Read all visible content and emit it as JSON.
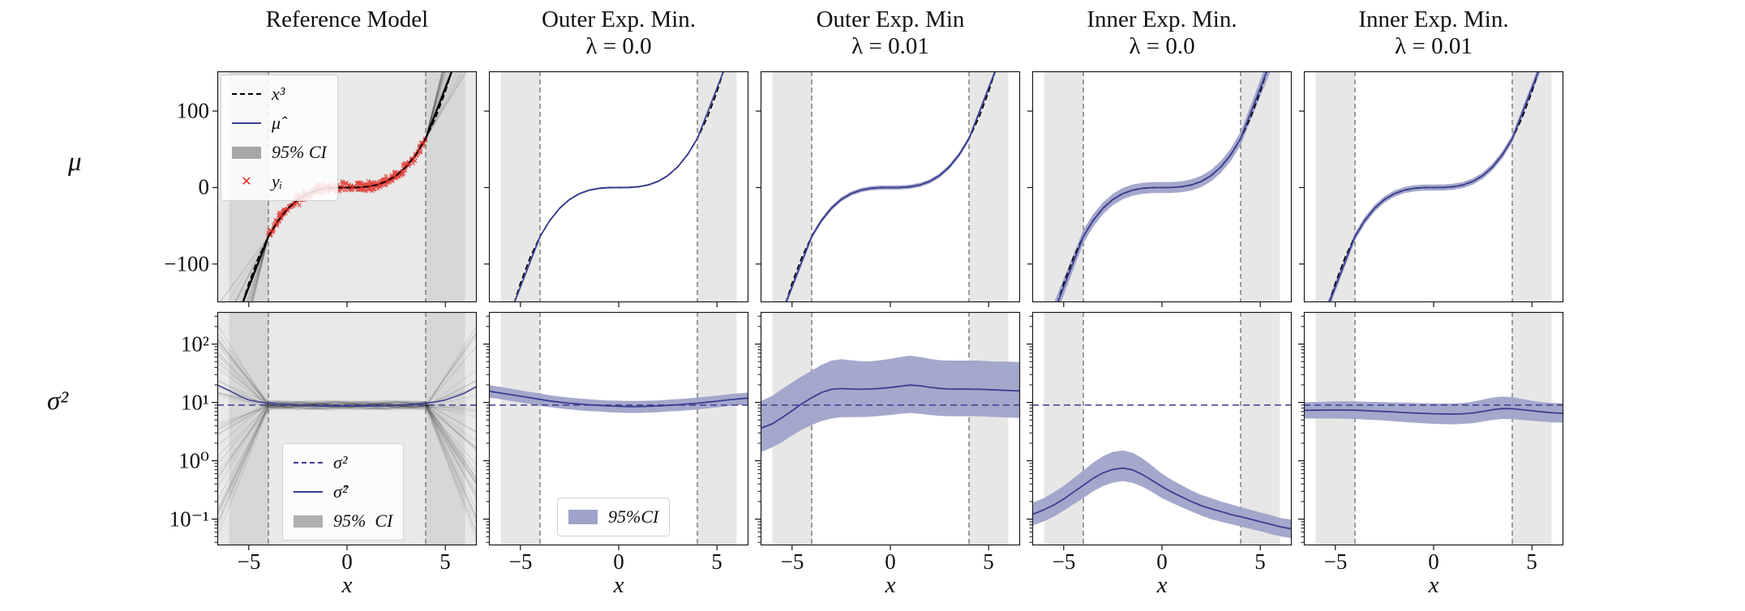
{
  "figure": {
    "row_labels": [
      "μ",
      "σ²"
    ],
    "x_label": "x",
    "x_ticks": [
      "−5",
      "0",
      "5"
    ],
    "mu_yticks": [
      "100",
      "0",
      "−100"
    ],
    "sigma_yticks": [
      "10²",
      "10¹",
      "10⁰",
      "10⁻¹"
    ],
    "columns": [
      {
        "title": "Reference Model",
        "subtitle": ""
      },
      {
        "title": "Outer Exp. Min.",
        "subtitle": "λ = 0.0"
      },
      {
        "title": "Outer Exp. Min",
        "subtitle": "λ = 0.01"
      },
      {
        "title": "Inner Exp. Min.",
        "subtitle": "λ = 0.0"
      },
      {
        "title": "Inner Exp. Min.",
        "subtitle": "λ = 0.01"
      }
    ],
    "legends": {
      "mu_ref": {
        "items": [
          {
            "label": "x³"
          },
          {
            "label": "μ̂"
          },
          {
            "label": "95% CI"
          },
          {
            "label": "yᵢ"
          }
        ]
      },
      "sigma_ref": {
        "items": [
          {
            "label": "σ²"
          },
          {
            "label": "σ̂²"
          },
          {
            "label": "95%  CI"
          }
        ]
      },
      "sigma_band": {
        "items": [
          {
            "label": "95%CI"
          }
        ]
      }
    }
  },
  "colors": {
    "blue": "#3b3e90",
    "band": "#9fa3c9",
    "red": "#de2d26",
    "ref_bg": "#e9e9e9",
    "ref_strip": "#d7d7d7",
    "strip": "#e7e7e7",
    "vline": "#6e6e6e",
    "spine": "#1a1a1a",
    "fan": "#111111"
  },
  "chart_data": {
    "type": "line",
    "x_axis": {
      "label": "x",
      "ticks": [
        -5,
        0,
        5
      ],
      "range": [
        -6.6,
        6.6
      ],
      "data_region": [
        -4,
        4
      ],
      "shaded_regions": [
        [
          -6,
          -4
        ],
        [
          4,
          6
        ]
      ]
    },
    "mu_axis": {
      "label": "μ",
      "ticks": [
        100,
        0,
        -100
      ],
      "range": [
        -150,
        152
      ],
      "scale": "linear"
    },
    "sigma_axis": {
      "label": "σ²",
      "tick_values": [
        100,
        10,
        1,
        0.1
      ],
      "range_log10": [
        -1.45,
        2.55
      ],
      "scale": "log"
    },
    "sigma_true": 9,
    "x": [
      -6.6,
      -6,
      -5.5,
      -5,
      -4.5,
      -4,
      -3.5,
      -3,
      -2.5,
      -2,
      -1.5,
      -1,
      -0.5,
      0,
      0.5,
      1,
      1.5,
      2,
      2.5,
      3,
      3.5,
      4,
      4.5,
      5,
      5.5,
      6,
      6.6
    ],
    "cubic": [
      -287.5,
      -216,
      -166.4,
      -125,
      -91.1,
      -64,
      -42.9,
      -27,
      -15.6,
      -8,
      -3.4,
      -1,
      -0.1,
      0,
      0.1,
      1,
      3.4,
      8,
      15.6,
      27,
      42.9,
      64,
      91.1,
      125,
      166.4,
      216,
      287.5
    ],
    "mu_fit": [
      -235.6,
      -196,
      -163,
      -130,
      -97,
      -64,
      -42.9,
      -27,
      -15.6,
      -8,
      -3.4,
      -1,
      -0.1,
      0,
      0.1,
      1,
      3.4,
      8,
      15.6,
      27,
      42.9,
      64,
      97,
      130,
      163,
      196,
      235.6
    ],
    "panels": {
      "mu": [
        {
          "column": "Reference Model",
          "kind": "ensemble",
          "scatter": {
            "label": "yᵢ",
            "n": 380,
            "x_range": [
              -4,
              4
            ],
            "noise_sd": 3,
            "marker": "x"
          },
          "ensemble_lines": 30,
          "shows": [
            "x³ dashed",
            "ensemble fan",
            "data scatter"
          ]
        },
        {
          "column": "Outer Exp. Min. λ=0.0",
          "kind": "fit",
          "band_halfwidth": [
            1.2,
            1.2,
            1.2,
            1.2,
            1.2,
            1.2,
            1.2,
            1.2,
            1.2,
            1.2,
            1.2,
            1.2,
            1.2,
            1.2,
            1.2,
            1.2,
            1.2,
            1.2,
            1.2,
            1.2,
            1.2,
            1.2,
            1.2,
            1.2,
            1.2,
            1.2,
            1.2
          ]
        },
        {
          "column": "Outer Exp. Min λ=0.01",
          "kind": "fit",
          "band_halfwidth": [
            5,
            4.6,
            4.2,
            3.9,
            3.5,
            3.2,
            3,
            2.9,
            2.8,
            2.8,
            2.8,
            2.8,
            2.8,
            2.8,
            2.8,
            2.8,
            2.8,
            2.8,
            2.8,
            2.9,
            3,
            3.2,
            3.5,
            3.9,
            4.2,
            4.6,
            5
          ]
        },
        {
          "column": "Inner Exp. Min. λ=0.0",
          "kind": "fit",
          "band_halfwidth": [
            16,
            14,
            12.5,
            11,
            9.8,
            8.8,
            8.2,
            7.8,
            7.5,
            7.4,
            7.3,
            7.2,
            7.2,
            7.2,
            7.2,
            7.2,
            7.3,
            7.4,
            7.5,
            7.8,
            8.2,
            8.8,
            9.8,
            11,
            12.5,
            14,
            16
          ]
        },
        {
          "column": "Inner Exp. Min. λ=0.01",
          "kind": "fit",
          "band_halfwidth": [
            9,
            8,
            7.2,
            6.4,
            5.7,
            5.1,
            4.7,
            4.4,
            4.2,
            4.1,
            4,
            4,
            4,
            4,
            4,
            4,
            4,
            4.1,
            4.2,
            4.4,
            4.7,
            5.1,
            5.7,
            6.4,
            7.2,
            8,
            9
          ]
        }
      ],
      "sigma": [
        {
          "column": "Reference Model",
          "kind": "ensemble",
          "ensemble_lines": 44,
          "center": [
            20,
            16,
            13,
            11,
            10.2,
            9.8,
            9.4,
            9.1,
            8.9,
            8.8,
            8.7,
            8.6,
            8.6,
            8.6,
            8.6,
            8.6,
            8.7,
            8.8,
            8.9,
            9.1,
            9.4,
            9.8,
            10.2,
            11,
            12.5,
            14.5,
            19
          ]
        },
        {
          "column": "Outer Exp. Min. λ=0.0",
          "kind": "band",
          "center": [
            15.5,
            14.5,
            13.6,
            12.8,
            12.0,
            11.3,
            10.6,
            10.1,
            9.7,
            9.4,
            9.1,
            8.9,
            8.7,
            8.6,
            8.5,
            8.5,
            8.6,
            8.7,
            8.9,
            9.1,
            9.4,
            9.7,
            10.1,
            10.5,
            11.0,
            11.4,
            11.9
          ],
          "upper": [
            19.8,
            18.4,
            17.2,
            16.1,
            15.1,
            14.2,
            13.3,
            12.6,
            12.1,
            11.7,
            11.3,
            11.0,
            10.8,
            10.7,
            10.6,
            10.6,
            10.7,
            10.8,
            11.1,
            11.4,
            11.7,
            12.1,
            12.6,
            13.1,
            13.7,
            14.2,
            14.8
          ],
          "lower": [
            12.1,
            11.3,
            10.6,
            10.0,
            9.4,
            8.8,
            8.3,
            7.9,
            7.6,
            7.3,
            7.1,
            7.0,
            6.8,
            6.7,
            6.6,
            6.6,
            6.7,
            6.8,
            7.0,
            7.1,
            7.3,
            7.6,
            7.9,
            8.2,
            8.6,
            8.9,
            9.3
          ]
        },
        {
          "column": "Outer Exp. Min λ=0.01",
          "kind": "band",
          "center": [
            3.6,
            4.3,
            5.5,
            7.2,
            9.5,
            12.0,
            14.8,
            16.8,
            17.3,
            17.0,
            16.8,
            17.0,
            17.4,
            18.0,
            18.9,
            19.8,
            19.3,
            18.2,
            17.4,
            17.0,
            16.9,
            16.9,
            16.8,
            16.6,
            16.3,
            16.0,
            15.7
          ],
          "upper": [
            10.5,
            13,
            17,
            22,
            28,
            35,
            44,
            52,
            55,
            53,
            51,
            51,
            53,
            56,
            60,
            63,
            60,
            56,
            53,
            52,
            52,
            52,
            52,
            51,
            50,
            50,
            49
          ],
          "lower": [
            1.4,
            1.7,
            2.1,
            2.7,
            3.4,
            4.1,
            4.8,
            5.3,
            5.6,
            5.6,
            5.6,
            5.7,
            5.9,
            6.1,
            6.4,
            6.6,
            6.4,
            6.1,
            5.9,
            5.8,
            5.8,
            5.8,
            5.8,
            5.7,
            5.6,
            5.5,
            5.4
          ]
        },
        {
          "column": "Inner Exp. Min. λ=0.0",
          "kind": "band",
          "center": [
            0.12,
            0.145,
            0.175,
            0.22,
            0.29,
            0.38,
            0.5,
            0.62,
            0.71,
            0.75,
            0.7,
            0.58,
            0.46,
            0.36,
            0.29,
            0.24,
            0.2,
            0.17,
            0.15,
            0.135,
            0.12,
            0.11,
            0.1,
            0.09,
            0.082,
            0.074,
            0.068
          ],
          "upper": [
            0.19,
            0.23,
            0.29,
            0.37,
            0.5,
            0.68,
            0.93,
            1.2,
            1.42,
            1.5,
            1.38,
            1.1,
            0.82,
            0.6,
            0.47,
            0.38,
            0.31,
            0.26,
            0.23,
            0.2,
            0.18,
            0.16,
            0.145,
            0.13,
            0.118,
            0.105,
            0.098
          ],
          "lower": [
            0.077,
            0.092,
            0.11,
            0.14,
            0.18,
            0.23,
            0.3,
            0.37,
            0.42,
            0.45,
            0.42,
            0.36,
            0.29,
            0.23,
            0.19,
            0.16,
            0.135,
            0.115,
            0.1,
            0.09,
            0.082,
            0.075,
            0.068,
            0.062,
            0.056,
            0.051,
            0.047
          ]
        },
        {
          "column": "Inner Exp. Min. λ=0.01",
          "kind": "band",
          "center": [
            7.3,
            7.35,
            7.4,
            7.4,
            7.4,
            7.35,
            7.25,
            7.1,
            7.0,
            6.85,
            6.7,
            6.6,
            6.5,
            6.4,
            6.35,
            6.3,
            6.4,
            6.6,
            7.0,
            7.5,
            7.85,
            7.8,
            7.5,
            7.2,
            6.9,
            6.65,
            6.5
          ],
          "upper": [
            10.1,
            10.2,
            10.3,
            10.4,
            10.4,
            10.4,
            10.3,
            10.2,
            10.1,
            10.0,
            9.9,
            9.8,
            9.7,
            9.6,
            9.6,
            9.6,
            9.8,
            10.3,
            11.2,
            12.1,
            12.6,
            12.3,
            11.5,
            10.7,
            10.1,
            9.8,
            9.7
          ],
          "lower": [
            5.3,
            5.3,
            5.3,
            5.3,
            5.25,
            5.2,
            5.1,
            5.0,
            4.9,
            4.75,
            4.6,
            4.5,
            4.4,
            4.3,
            4.25,
            4.2,
            4.3,
            4.4,
            4.7,
            5.0,
            5.2,
            5.15,
            5.0,
            4.85,
            4.7,
            4.55,
            4.5
          ]
        }
      ]
    }
  }
}
